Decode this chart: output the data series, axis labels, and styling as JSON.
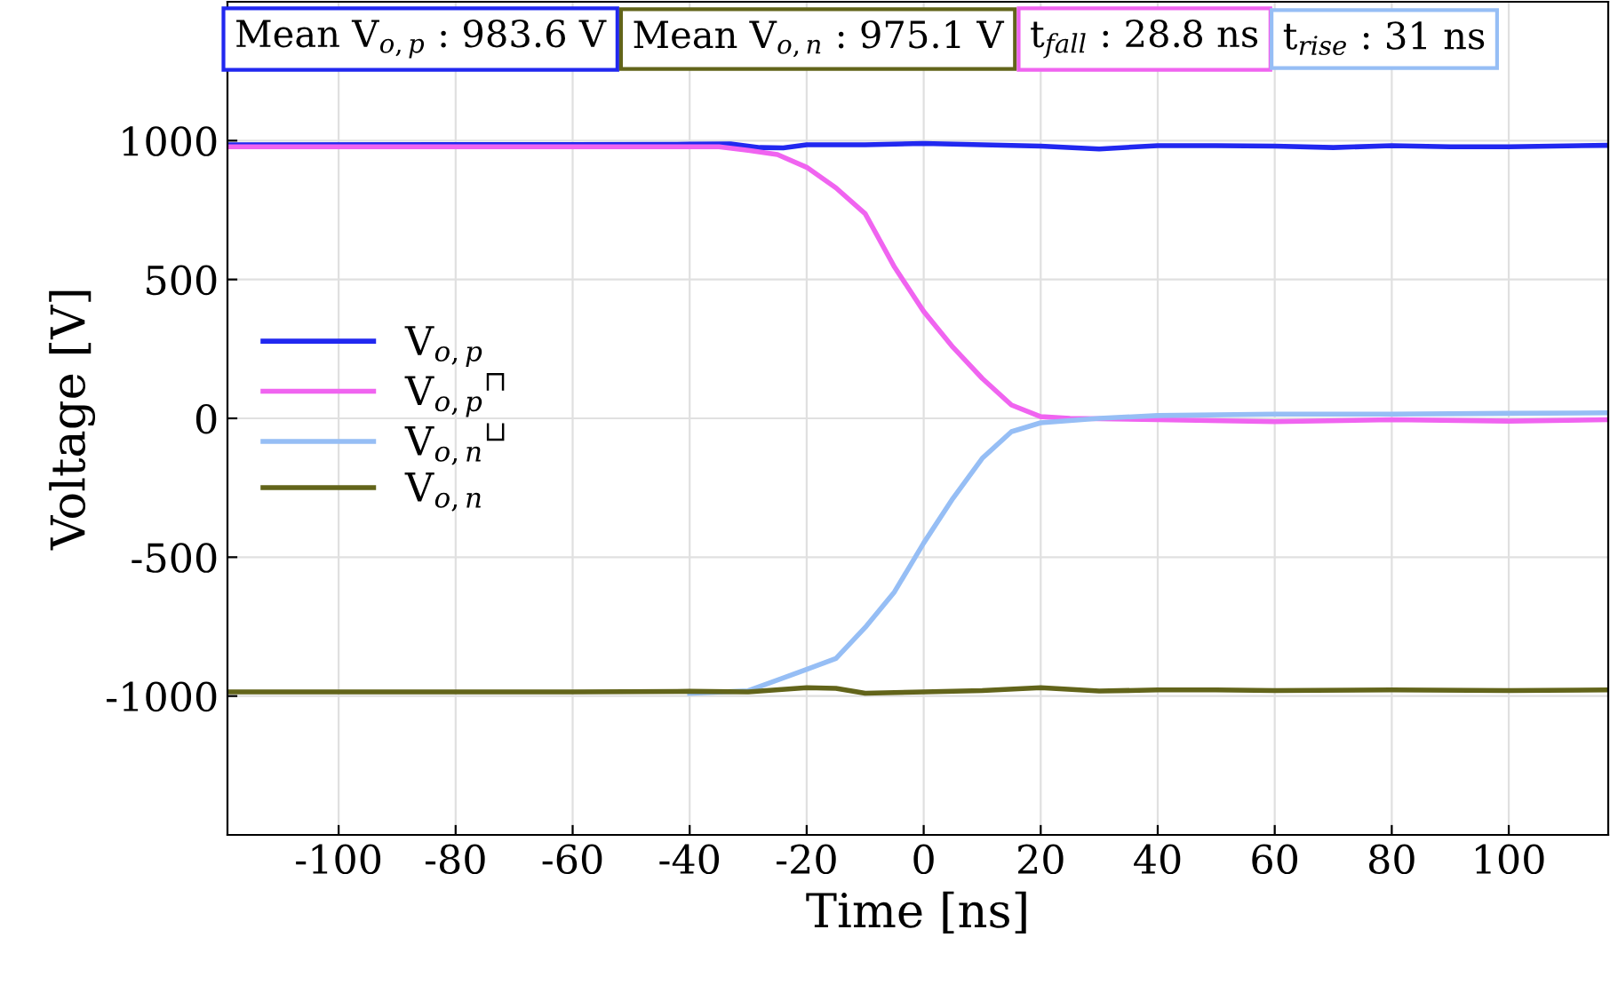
{
  "chart_data": {
    "type": "line",
    "xlabel": "Time [ns]",
    "ylabel": "Voltage [V]",
    "xlim": [
      -119,
      117
    ],
    "ylim": [
      -1500,
      1500
    ],
    "xticks": [
      -100,
      -80,
      -60,
      -40,
      -20,
      0,
      20,
      40,
      60,
      80,
      100
    ],
    "yticks": [
      -1000,
      -500,
      0,
      500,
      1000
    ],
    "grid": true,
    "legend": "left",
    "line_style": "solid",
    "marker": "none",
    "annotations": [
      "Mean V$_{o,p}$ : 983.6 V",
      "Mean V$_{o,n}$ : 975.1 V",
      "t$_{fall}$ : 28.8 ns",
      "t$_{rise}$ : 31 ns"
    ],
    "series": [
      {
        "name": "V$_{o,p}$",
        "color": "#2128f0",
        "x": [
          -119,
          -60,
          -40,
          -33,
          -28,
          -24,
          -20,
          -10,
          0,
          10,
          20,
          30,
          40,
          50,
          60,
          70,
          80,
          90,
          100,
          117
        ],
        "values": [
          985,
          986,
          987,
          988,
          975,
          974,
          985,
          985,
          990,
          985,
          980,
          970,
          982,
          982,
          980,
          975,
          982,
          978,
          978,
          983
        ]
      },
      {
        "name": "V$_{o,p}$$^{⊓}$",
        "color": "#f064f0",
        "x": [
          -119,
          -60,
          -35,
          -30,
          -25,
          -20,
          -15,
          -10,
          -5,
          0,
          5,
          10,
          15,
          20,
          25,
          40,
          60,
          80,
          100,
          117
        ],
        "values": [
          978,
          978,
          978,
          965,
          950,
          904,
          830,
          737,
          545,
          385,
          256,
          144,
          48,
          6,
          0,
          -5,
          -12,
          -5,
          -10,
          -5
        ]
      },
      {
        "name": "V$_{o,n}$$^{⊔}$",
        "color": "#96bef5",
        "x": [
          -40,
          -30,
          -20,
          -15,
          -10,
          -5,
          0,
          5,
          10,
          15,
          20,
          30,
          40,
          60,
          80,
          100,
          117
        ],
        "values": [
          -990,
          -981,
          -904,
          -865,
          -753,
          -625,
          -449,
          -288,
          -144,
          -48,
          -16,
          0,
          10,
          15,
          15,
          18,
          20
        ]
      },
      {
        "name": "V$_{o,n}$",
        "color": "#62641a",
        "x": [
          -119,
          -60,
          -40,
          -30,
          -20,
          -15,
          -10,
          0,
          10,
          20,
          30,
          40,
          50,
          60,
          80,
          100,
          117
        ],
        "values": [
          -985,
          -985,
          -983,
          -985,
          -970,
          -972,
          -990,
          -985,
          -980,
          -970,
          -982,
          -978,
          -978,
          -980,
          -978,
          -980,
          -978
        ]
      }
    ]
  }
}
